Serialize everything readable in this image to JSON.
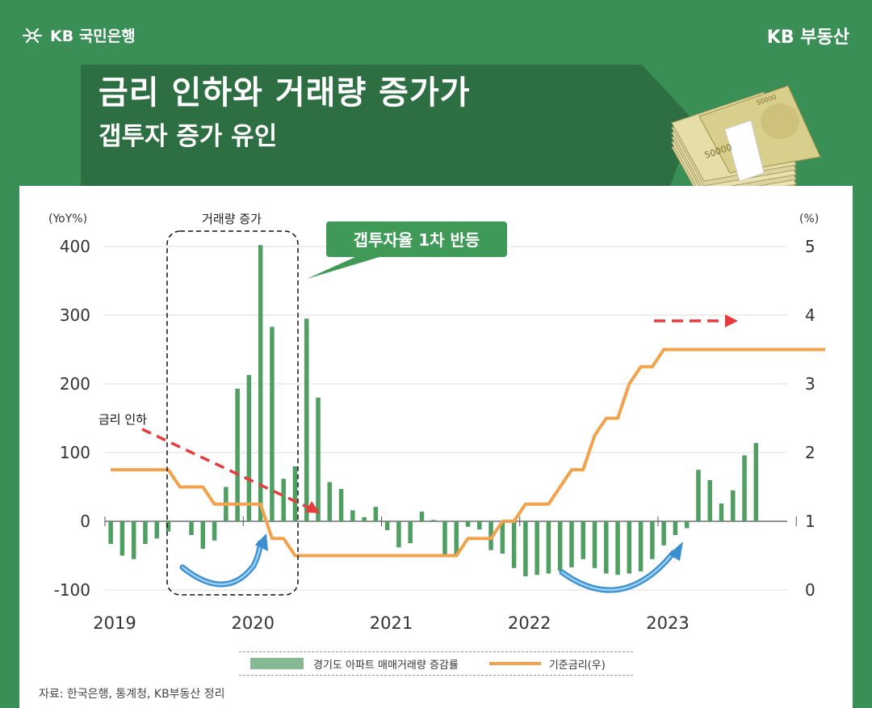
{
  "header": {
    "brand_left": "KB 국민은행",
    "brand_right": "KB 부동산",
    "title": "금리 인하와 거래량 증가가",
    "subtitle": "갭투자 증가 유인"
  },
  "icons": [
    "kb-star-icon",
    "money-stack-icon",
    "curved-arrow-icon",
    "dashed-arrow-icon"
  ],
  "colors": {
    "background": "#3a8f57",
    "band": "#2e6e43",
    "bar": "#4f9e62",
    "line": "#f3a24c",
    "arrow": "#e83b3b",
    "callout": "#3f9a58",
    "curve_arrow": "#3b8fd0"
  },
  "annotations": {
    "volume_box": "거래량 증가",
    "callout": "갭투자율 1차 반등",
    "rate_cut": "금리 인하"
  },
  "legend": {
    "bars": "경기도 아파트 매매거래량 증감률",
    "line": "기준금리(우)"
  },
  "source": "자료: 한국은행, 통계청, KB부동산 정리",
  "chart_data": {
    "type": "bar",
    "left_unit": "(YoY%)",
    "right_unit": "(%)",
    "left_ylim": [
      -100,
      400
    ],
    "right_ylim": [
      0,
      5
    ],
    "left_ticks": [
      "400",
      "300",
      "200",
      "100",
      "0",
      "-100"
    ],
    "right_ticks": [
      "5",
      "4",
      "3",
      "2",
      "1",
      "0"
    ],
    "x_ticks": [
      "2019",
      "2020",
      "2021",
      "2022",
      "2023"
    ],
    "legend_position": "bottom",
    "series": [
      {
        "name": "경기도 아파트 매매거래량 증감률",
        "kind": "bar",
        "axis": "left",
        "values": [
          -33,
          -50,
          -55,
          -33,
          -25,
          -15,
          1,
          -20,
          -40,
          -28,
          50,
          193,
          213,
          402,
          283,
          62,
          80,
          295,
          180,
          57,
          47,
          16,
          6,
          21,
          -13,
          -38,
          -32,
          14,
          2,
          -50,
          -50,
          -8,
          -12,
          -42,
          -47,
          -68,
          -80,
          -78,
          -76,
          -72,
          -67,
          -55,
          -68,
          -76,
          -78,
          -76,
          -73,
          -55,
          -35,
          -20,
          -10,
          75,
          60,
          26,
          45,
          96,
          114
        ]
      },
      {
        "name": "기준금리(우)",
        "kind": "line",
        "axis": "right",
        "values": [
          1.75,
          1.75,
          1.75,
          1.75,
          1.75,
          1.75,
          1.5,
          1.5,
          1.5,
          1.25,
          1.25,
          1.25,
          1.25,
          1.25,
          0.75,
          0.75,
          0.5,
          0.5,
          0.5,
          0.5,
          0.5,
          0.5,
          0.5,
          0.5,
          0.5,
          0.5,
          0.5,
          0.5,
          0.5,
          0.5,
          0.5,
          0.75,
          0.75,
          0.75,
          1.0,
          1.0,
          1.25,
          1.25,
          1.25,
          1.5,
          1.75,
          1.75,
          2.25,
          2.5,
          2.5,
          3.0,
          3.25,
          3.25,
          3.5,
          3.5,
          3.5,
          3.5,
          3.5,
          3.5,
          3.5,
          3.5,
          3.5,
          3.5,
          3.5,
          3.5,
          3.5,
          3.5,
          3.5
        ]
      }
    ]
  }
}
